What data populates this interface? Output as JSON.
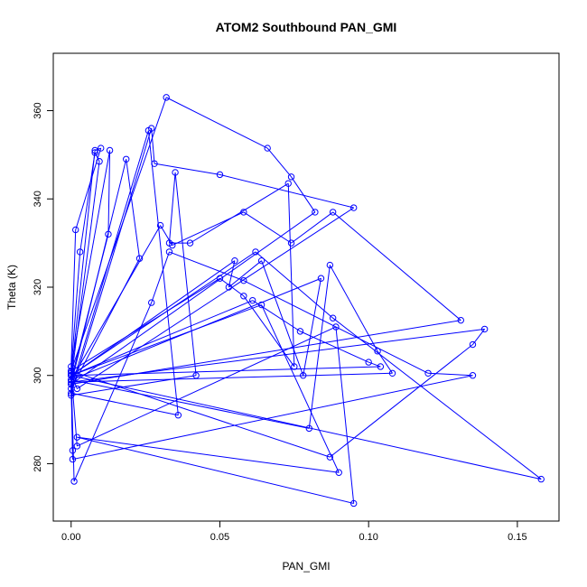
{
  "chart_data": {
    "type": "line",
    "title": "ATOM2 Southbound PAN_GMI",
    "xlabel": "PAN_GMI",
    "ylabel": "Theta (K)",
    "xlim": [
      -0.006,
      0.164
    ],
    "ylim": [
      267,
      373
    ],
    "x_ticks": [
      0.0,
      0.05,
      0.1,
      0.15
    ],
    "x_tick_labels": [
      "0.00",
      "0.05",
      "0.10",
      "0.15"
    ],
    "y_ticks": [
      280,
      300,
      320,
      340,
      360
    ],
    "y_tick_labels": [
      "280",
      "300",
      "320",
      "340",
      "360"
    ],
    "markers": "open-circle",
    "grid": false,
    "legend": "none",
    "colors": {
      "series": "#0000ff",
      "axis": "#000000"
    },
    "series": [
      {
        "x": [
          0.0,
          0.008,
          0.01,
          0.0015,
          0.0,
          0.013,
          0.0125,
          0.0,
          0.0095,
          0.008,
          0.003,
          0.0,
          0.032,
          0.066,
          0.074,
          0.082,
          0.0,
          0.0185,
          0.023,
          0.0,
          0.026,
          0.036,
          0.0,
          0.027,
          0.028,
          0.05,
          0.095,
          0.002,
          0.0,
          0.0005,
          0.0,
          0.055,
          0.053,
          0.064,
          0.078,
          0.084,
          0.0,
          0.03,
          0.034,
          0.058,
          0.074,
          0.088,
          0.131,
          0.0,
          0.0,
          0.042,
          0.035,
          0.033,
          0.04,
          0.073,
          0.075,
          0.058,
          0.05,
          0.0,
          0.001,
          0.027,
          0.033,
          0.058,
          0.12,
          0.135,
          0.0005,
          0.0,
          0.08,
          0.087,
          0.103,
          0.108,
          0.0,
          0.139,
          0.135,
          0.087,
          0.0,
          0.002,
          0.089,
          0.095,
          0.002,
          0.09,
          0.064,
          0.0,
          0.062,
          0.088,
          0.158,
          0.0,
          0.061,
          0.077,
          0.1,
          0.104,
          0.0
        ],
        "y": [
          300,
          351,
          351.5,
          333,
          302,
          351,
          332,
          299,
          348.5,
          350.5,
          328,
          301,
          363,
          351.5,
          345,
          337,
          298,
          349,
          326.5,
          297,
          355.5,
          291,
          296,
          356,
          348,
          345.5,
          338,
          297,
          300.5,
          283,
          300,
          326,
          320,
          326,
          300,
          322,
          299,
          334,
          329.5,
          337,
          330,
          337,
          312.5,
          298,
          295.5,
          300,
          346,
          330,
          330,
          343.5,
          302,
          318,
          322,
          301,
          276,
          316.5,
          328,
          321.5,
          300.5,
          300,
          281,
          299,
          288,
          325,
          305.5,
          300.5,
          298.5,
          310.5,
          307,
          281.5,
          301,
          284,
          311,
          271,
          286,
          278,
          316,
          300,
          328,
          313,
          276.5,
          300,
          317,
          310,
          303,
          302,
          300
        ]
      }
    ]
  }
}
